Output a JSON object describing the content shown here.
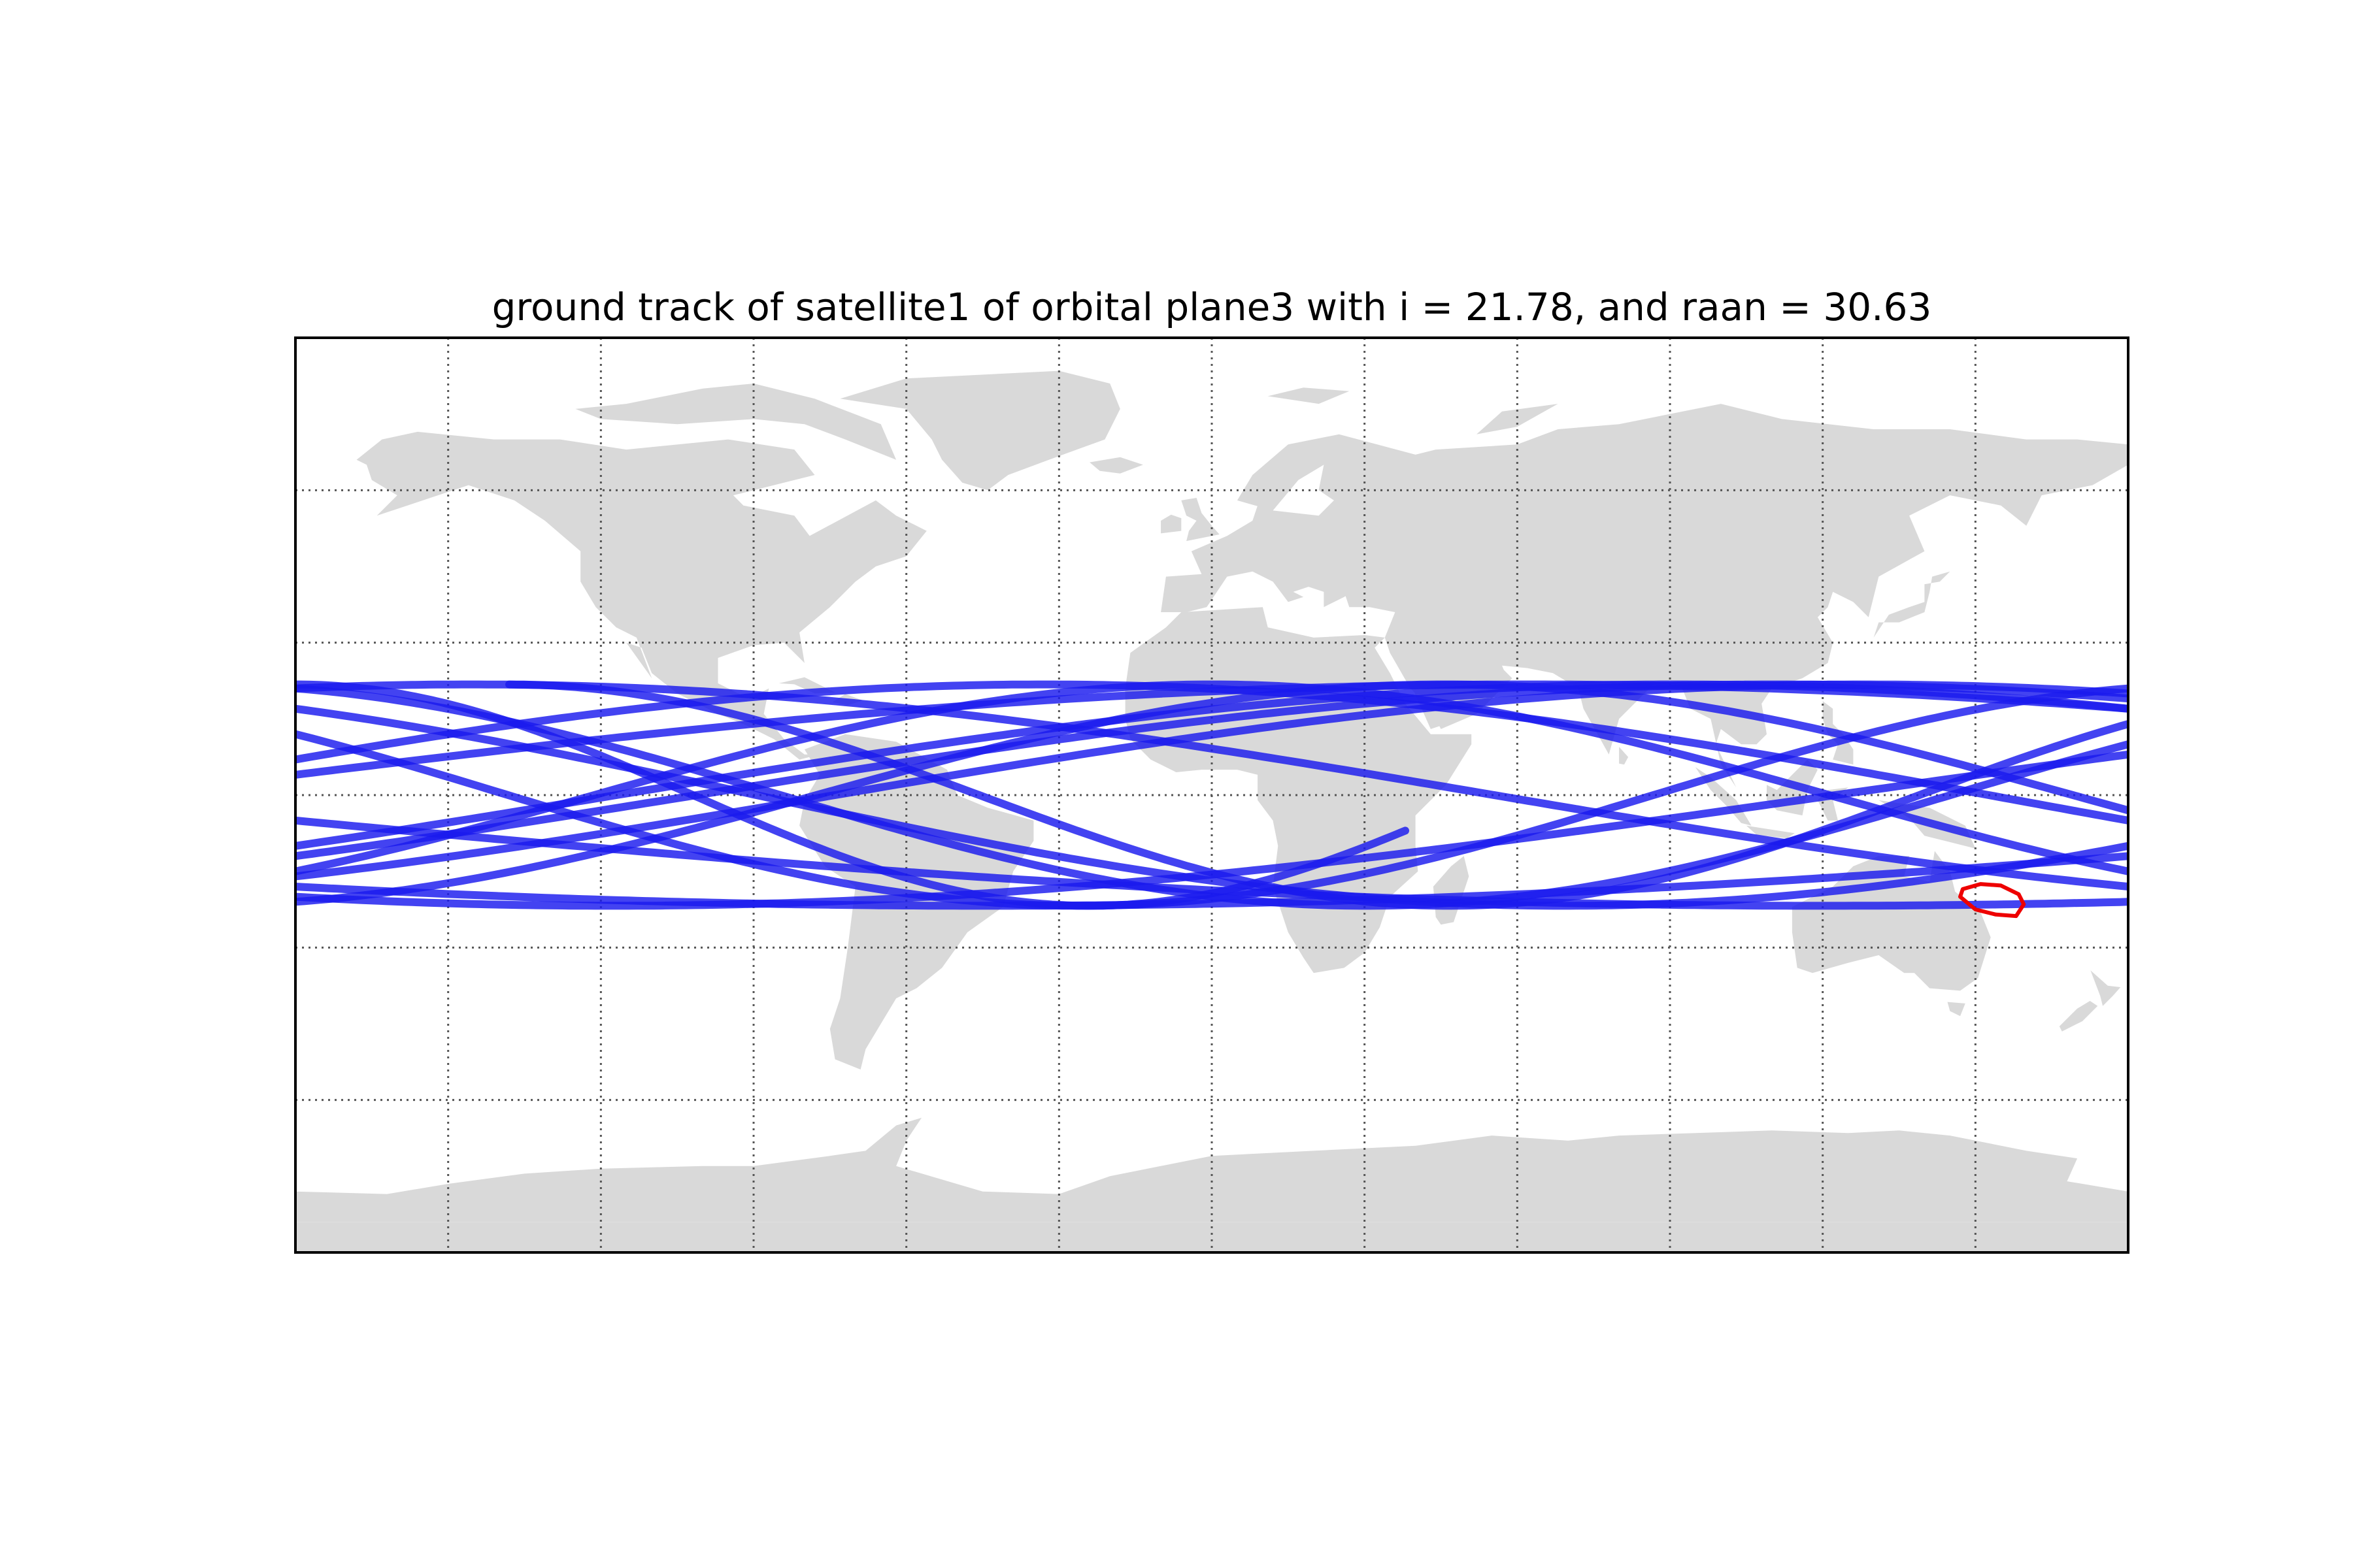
{
  "title": "ground track of satellite1 of orbital plane3  with i = 21.78, and raan = 30.63",
  "colors": {
    "land": "#d9d9d9",
    "track": "#1a1aee",
    "target_region": "#ee0000",
    "grid": "#555555",
    "frame": "#000000"
  },
  "chart_data": {
    "type": "map",
    "projection": "equirectangular",
    "xlim": [
      -180,
      180
    ],
    "ylim": [
      -90,
      90
    ],
    "meridians": [
      -150,
      -120,
      -90,
      -60,
      -30,
      0,
      30,
      60,
      90,
      120,
      150
    ],
    "parallels": [
      -60,
      -30,
      0,
      30,
      60
    ],
    "grid": true,
    "orbit": {
      "satellite": "satellite1",
      "plane": "plane3",
      "inclination_deg": 21.78,
      "raan_deg": 30.63
    },
    "ground_track": {
      "latitude_range": [
        -21.78,
        21.78
      ],
      "segments": [
        {
          "start": [
            38,
            -7
          ],
          "end": [
            -180,
            21.78
          ],
          "min_lat_lon": 30
        },
        {
          "start": [
            180,
            17
          ],
          "end": [
            -180,
            -10
          ],
          "max_lat_lon": 84
        },
        {
          "start": [
            180,
            -10
          ],
          "end": [
            -180,
            17
          ],
          "min_lat_lon": -90
        },
        {
          "start": [
            180,
            17
          ],
          "end": [
            -180,
            4
          ],
          "max_lat_lon": -96
        },
        {
          "start": [
            180,
            -15
          ],
          "end": [
            -180,
            -15
          ],
          "max_lat_lon": 118
        },
        {
          "start": [
            180,
            10
          ],
          "end": [
            -180,
            21
          ],
          "min_lat_lon": 66
        },
        {
          "start": [
            180,
            -3
          ],
          "end": [
            -180,
            -21
          ],
          "max_lat_lon": -48
        },
        {
          "start": [
            180,
            -21
          ],
          "end": [
            -180,
            -5
          ],
          "min_lat_lon": 142
        },
        {
          "start": [
            180,
            19
          ],
          "end": [
            -180,
            -12
          ],
          "max_lat_lon": -15
        },
        {
          "start": [
            180,
            -12
          ],
          "end": [
            -180,
            -18
          ],
          "min_lat_lon": -25
        },
        {
          "start": [
            180,
            20
          ],
          "end": [
            -180,
            -16
          ],
          "max_lat_lon": 95
        },
        {
          "start": [
            180,
            -5
          ],
          "end": [
            -180,
            7
          ],
          "max_lat_lon": 0
        },
        {
          "start": [
            180,
            8
          ],
          "end": [
            -180,
            -20
          ],
          "min_lat_lon": 108
        },
        {
          "start": [
            180,
            -18
          ],
          "end": [
            -180,
            21
          ],
          "max_lat_lon": -60
        },
        {
          "start": [
            180,
            21
          ],
          "end": [
            -180,
            12
          ],
          "min_lat_lon": -130
        },
        {
          "start": [
            180,
            14
          ],
          "end": [
            -138,
            21.78
          ],
          "min_lat_lon": 120
        }
      ]
    },
    "target_region": {
      "label": "",
      "polygon": [
        [
          147.5,
          -18.5
        ],
        [
          151,
          -17.5
        ],
        [
          155,
          -17.8
        ],
        [
          158.5,
          -19.5
        ],
        [
          159.5,
          -21.5
        ],
        [
          158,
          -23.8
        ],
        [
          154,
          -23.5
        ],
        [
          150,
          -22.5
        ],
        [
          147,
          -20
        ]
      ]
    }
  }
}
